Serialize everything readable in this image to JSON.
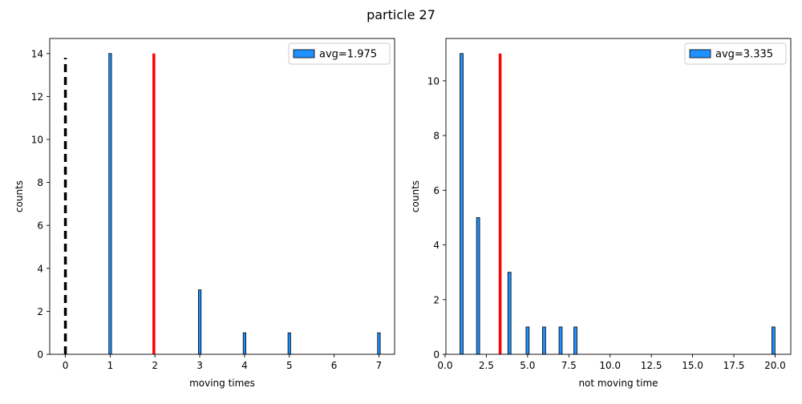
{
  "figure_title": "particle 27",
  "chart_data": [
    {
      "type": "bar",
      "xlabel": "moving times",
      "ylabel": "counts",
      "xlim": [
        -0.35,
        7.35
      ],
      "ylim": [
        0,
        14.7
      ],
      "xticks": [
        0,
        1,
        2,
        3,
        4,
        5,
        6,
        7
      ],
      "xtick_labels": [
        "0",
        "1",
        "2",
        "3",
        "4",
        "5",
        "6",
        "7"
      ],
      "yticks": [
        0,
        2,
        4,
        6,
        8,
        10,
        12,
        14
      ],
      "ytick_labels": [
        "0",
        "2",
        "4",
        "6",
        "8",
        "10",
        "12",
        "14"
      ],
      "bar_width": 0.06,
      "series": [
        {
          "name": "avg=1.975",
          "x": [
            1,
            3,
            4,
            5,
            7
          ],
          "values": [
            14,
            3,
            1,
            1,
            1
          ]
        }
      ],
      "vlines": [
        {
          "x": 1.975,
          "y_top": 14,
          "color": "#ff0000",
          "style": "solid"
        },
        {
          "x": 0,
          "y_top": 13.8,
          "color": "#000000",
          "style": "dashed"
        }
      ],
      "legend": {
        "label": "avg=1.975",
        "placement": "top-right"
      },
      "bar_color": "#1e90ff",
      "grid": false
    },
    {
      "type": "bar",
      "xlabel": "not moving time",
      "ylabel": "counts",
      "xlim": [
        0.05,
        20.95
      ],
      "ylim": [
        0,
        11.55
      ],
      "xticks": [
        0,
        2.5,
        5,
        7.5,
        10,
        12.5,
        15,
        17.5,
        20
      ],
      "xtick_labels": [
        "0.0",
        "2.5",
        "5.0",
        "7.5",
        "10.0",
        "12.5",
        "15.0",
        "17.5",
        "20.0"
      ],
      "yticks": [
        0,
        2,
        4,
        6,
        8,
        10
      ],
      "ytick_labels": [
        "0",
        "2",
        "4",
        "6",
        "8",
        "10"
      ],
      "bar_width": 0.19,
      "series": [
        {
          "name": "avg=3.335",
          "x": [
            1,
            2,
            3.9,
            5,
            6,
            7,
            7.9,
            19.9
          ],
          "values": [
            11,
            5,
            3,
            1,
            1,
            1,
            1,
            1
          ]
        }
      ],
      "vlines": [
        {
          "x": 3.335,
          "y_top": 11,
          "color": "#ff0000",
          "style": "solid"
        }
      ],
      "legend": {
        "label": "avg=3.335",
        "placement": "top-right"
      },
      "bar_color": "#1e90ff",
      "grid": false
    }
  ]
}
